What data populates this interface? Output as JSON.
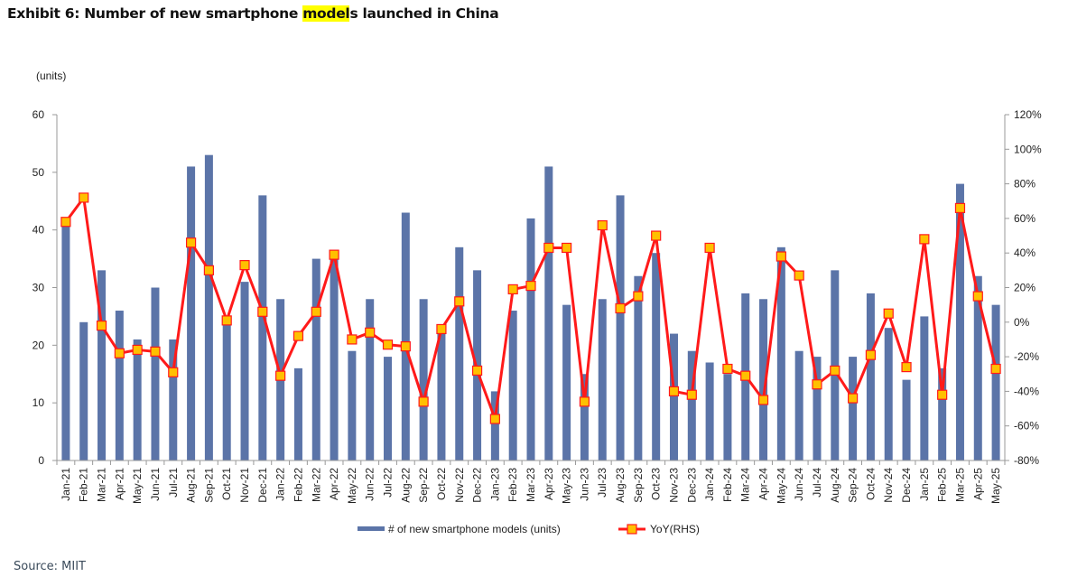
{
  "title": {
    "prefix": "Exhibit 6: Number of new smartphone ",
    "highlight": "model",
    "suffix": "s launched in China"
  },
  "source": "Source: MIIT",
  "colors": {
    "bar": "#5b74a8",
    "line": "#ff1a1a",
    "marker_fill": "#ffc000",
    "highlight": "#ffff00"
  },
  "chart_data": {
    "type": "bar+line",
    "y_unit_label": "(units)",
    "ylim_left": [
      0,
      60
    ],
    "yticks_left": [
      "0",
      "10",
      "20",
      "30",
      "40",
      "50",
      "60"
    ],
    "ylim_right": [
      -80,
      120
    ],
    "yticks_right": [
      "-80%",
      "-60%",
      "-40%",
      "-20%",
      "0%",
      "20%",
      "40%",
      "60%",
      "80%",
      "100%",
      "120%"
    ],
    "categories": [
      "Jan-21",
      "Feb-21",
      "Mar-21",
      "Apr-21",
      "May-21",
      "Jun-21",
      "Jul-21",
      "Aug-21",
      "Sep-21",
      "Oct-21",
      "Nov-21",
      "Dec-21",
      "Jan-22",
      "Feb-22",
      "Mar-22",
      "Apr-22",
      "May-22",
      "Jun-22",
      "Jul-22",
      "Aug-22",
      "Sep-22",
      "Oct-22",
      "Nov-22",
      "Dec-22",
      "Jan-23",
      "Feb-23",
      "Mar-23",
      "Apr-23",
      "May-23",
      "Jun-23",
      "Jul-23",
      "Aug-23",
      "Sep-23",
      "Oct-23",
      "Nov-23",
      "Dec-23",
      "Jan-24",
      "Feb-24",
      "Mar-24",
      "Apr-24",
      "May-24",
      "Jun-24",
      "Jul-24",
      "Aug-24",
      "Sep-24",
      "Oct-24",
      "Nov-24",
      "Dec-24",
      "Jan-25",
      "Feb-25",
      "Mar-25",
      "Apr-25",
      "May-25"
    ],
    "series": [
      {
        "name": "# of new smartphone models (units)",
        "axis": "left",
        "kind": "bar",
        "values": [
          41,
          24,
          33,
          26,
          21,
          30,
          21,
          51,
          53,
          24,
          31,
          46,
          28,
          16,
          35,
          35,
          19,
          28,
          18,
          43,
          28,
          22,
          37,
          33,
          12,
          26,
          42,
          51,
          27,
          15,
          28,
          46,
          32,
          36,
          22,
          19,
          17,
          15,
          29,
          28,
          37,
          19,
          18,
          33,
          18,
          29,
          23,
          14,
          25,
          16,
          48,
          32,
          27
        ]
      },
      {
        "name": "YoY(RHS)",
        "axis": "right",
        "kind": "line",
        "values": [
          58,
          72,
          -2,
          -18,
          -16,
          -17,
          -29,
          46,
          30,
          1,
          33,
          6,
          -31,
          -8,
          6,
          39,
          -10,
          -6,
          -13,
          -14,
          -46,
          -4,
          12,
          -28,
          -56,
          19,
          21,
          43,
          43,
          -46,
          56,
          8,
          15,
          50,
          -40,
          -42,
          43,
          -27,
          -31,
          -45,
          38,
          27,
          -36,
          -28,
          -44,
          -19,
          5,
          -26,
          48,
          -42,
          66,
          15,
          -27
        ]
      }
    ],
    "legend": [
      "# of new smartphone models (units)",
      "YoY(RHS)"
    ],
    "legend_position": "bottom",
    "grid": false
  }
}
